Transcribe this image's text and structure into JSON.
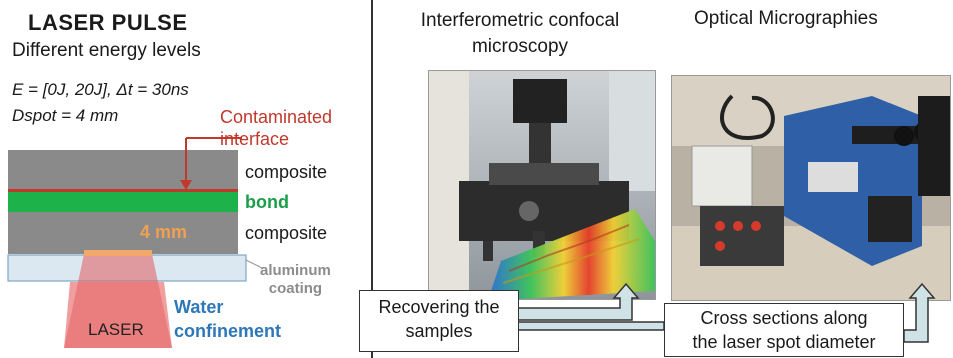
{
  "left_panel": {
    "title": "LASER PULSE",
    "subtitle": "Different energy levels",
    "formula_energy": "E = [0J, 20J], Δt = 30ns",
    "formula_spot": "Dspot = 4 mm",
    "contaminated_line1": "Contaminated",
    "contaminated_line2": "interface",
    "composite_top": "composite",
    "bond": "bond",
    "composite_bottom": "composite",
    "spot_size": "4 mm",
    "aluminum_line1": "aluminum",
    "aluminum_line2": "coating",
    "water_line1": "Water",
    "water_line2": "confinement",
    "laser": "LASER"
  },
  "right_panel": {
    "interferometric_title_line1": "Interferometric confocal",
    "interferometric_title_line2": "microscopy",
    "optical_title": "Optical Micrographies",
    "recover_line1": "Recovering the",
    "recover_line2": "samples",
    "cross_line1": "Cross sections along",
    "cross_line2": "the laser spot diameter"
  },
  "colors": {
    "composite": "#8a8a8a",
    "bond": "#1db34a",
    "contaminated": "#c0392b",
    "aluminum": "#dbe8f2",
    "laser": "#e05a5a",
    "spot": "#f2a86a",
    "water_text": "#2e77b8"
  }
}
